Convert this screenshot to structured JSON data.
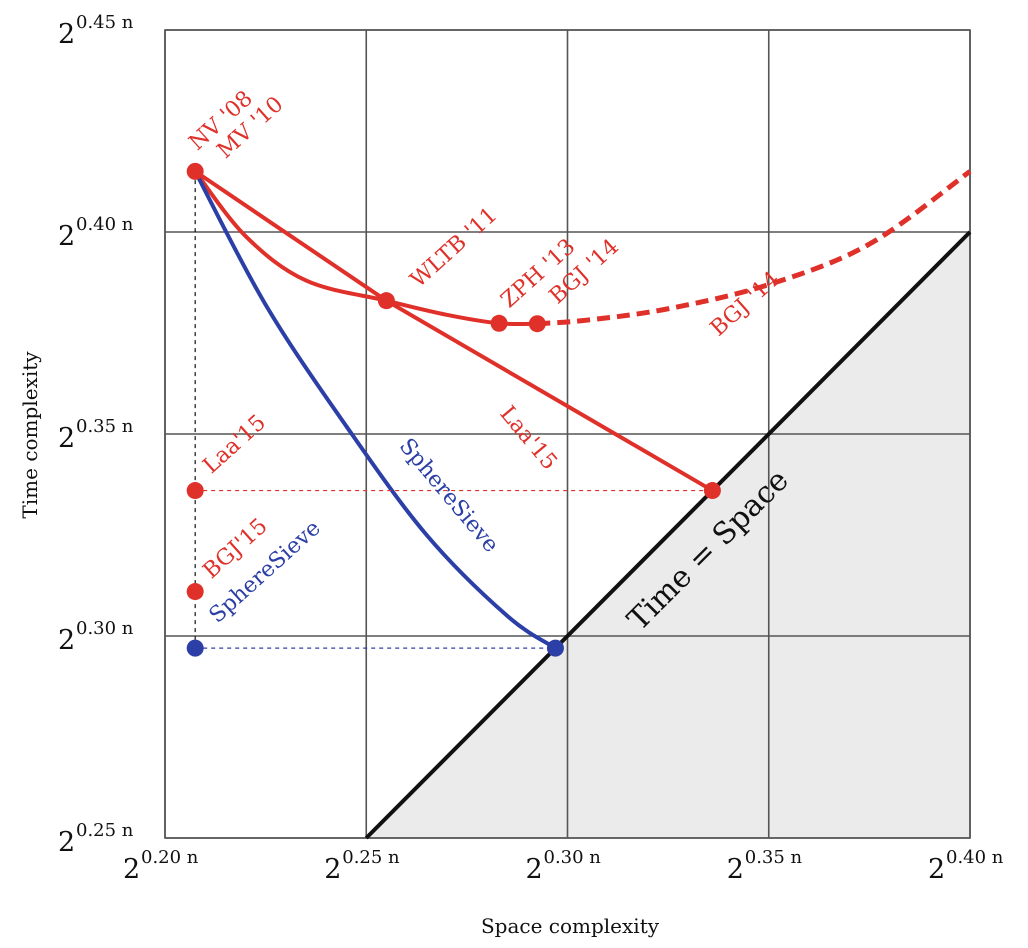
{
  "chart_data": {
    "type": "line",
    "title": "",
    "xlabel": "Space complexity",
    "ylabel": "Time complexity",
    "xlim": [
      0.2,
      0.4
    ],
    "ylim": [
      0.25,
      0.45
    ],
    "x_tick_values": [
      0.2,
      0.25,
      0.3,
      0.35,
      0.4
    ],
    "y_tick_values": [
      0.25,
      0.3,
      0.35,
      0.4,
      0.45
    ],
    "x_tick_labels": [
      {
        "base": "2",
        "exp": "0.20 n"
      },
      {
        "base": "2",
        "exp": "0.25 n"
      },
      {
        "base": "2",
        "exp": "0.30 n"
      },
      {
        "base": "2",
        "exp": "0.35 n"
      },
      {
        "base": "2",
        "exp": "0.40 n"
      }
    ],
    "y_tick_labels": [
      {
        "base": "2",
        "exp": "0.25 n"
      },
      {
        "base": "2",
        "exp": "0.30 n"
      },
      {
        "base": "2",
        "exp": "0.35 n"
      },
      {
        "base": "2",
        "exp": "0.40 n"
      },
      {
        "base": "2",
        "exp": "0.45 n"
      }
    ],
    "grid": true,
    "colors": {
      "red": "#e0302a",
      "blue": "#2b3fa6",
      "black": "#111111",
      "shade": "#ebebeb",
      "grid": "#555555"
    },
    "series": [
      {
        "color": "red",
        "style": "solid",
        "kind": "curve",
        "x": [
          0.2075,
          0.22,
          0.235,
          0.255,
          0.27,
          0.283,
          0.2925
        ],
        "y": [
          0.415,
          0.399,
          0.388,
          0.383,
          0.3795,
          0.3774,
          0.3773
        ]
      },
      {
        "color": "red",
        "style": "dashed",
        "kind": "curve",
        "x": [
          0.2925,
          0.305,
          0.325,
          0.35,
          0.375,
          0.4
        ],
        "y": [
          0.3773,
          0.3782,
          0.381,
          0.387,
          0.397,
          0.415
        ]
      },
      {
        "color": "red",
        "style": "solid",
        "kind": "line",
        "x": [
          0.2075,
          0.255,
          0.336
        ],
        "y": [
          0.415,
          0.383,
          0.336
        ]
      },
      {
        "color": "blue",
        "style": "solid",
        "kind": "curve",
        "x": [
          0.2075,
          0.225,
          0.245,
          0.265,
          0.285,
          0.297
        ],
        "y": [
          0.415,
          0.382,
          0.352,
          0.325,
          0.305,
          0.297
        ]
      },
      {
        "color": "black",
        "style": "solid",
        "kind": "line",
        "x": [
          0.25,
          0.4
        ],
        "y": [
          0.25,
          0.4
        ]
      },
      {
        "color": "black",
        "style": "dotted",
        "kind": "line",
        "x": [
          0.2075,
          0.2075
        ],
        "y": [
          0.297,
          0.415
        ]
      },
      {
        "color": "red",
        "style": "dotted",
        "kind": "line",
        "x": [
          0.2075,
          0.336
        ],
        "y": [
          0.336,
          0.336
        ]
      },
      {
        "color": "blue",
        "style": "dotted",
        "kind": "line",
        "x": [
          0.2075,
          0.297
        ],
        "y": [
          0.297,
          0.297
        ]
      }
    ],
    "points": [
      {
        "x": 0.2075,
        "y": 0.415,
        "color": "red"
      },
      {
        "x": 0.255,
        "y": 0.383,
        "color": "red"
      },
      {
        "x": 0.283,
        "y": 0.3774,
        "color": "red"
      },
      {
        "x": 0.2925,
        "y": 0.3773,
        "color": "red"
      },
      {
        "x": 0.336,
        "y": 0.336,
        "color": "red"
      },
      {
        "x": 0.2075,
        "y": 0.336,
        "color": "red"
      },
      {
        "x": 0.2075,
        "y": 0.311,
        "color": "red"
      },
      {
        "x": 0.297,
        "y": 0.297,
        "color": "blue"
      },
      {
        "x": 0.2075,
        "y": 0.297,
        "color": "blue"
      }
    ],
    "annotations": [
      {
        "text": "NV '08",
        "x": 0.208,
        "y": 0.42,
        "angle": -42,
        "color": "red"
      },
      {
        "text": "MV '10",
        "x": 0.215,
        "y": 0.418,
        "angle": -42,
        "color": "red"
      },
      {
        "text": "WLTB '11",
        "x": 0.263,
        "y": 0.386,
        "angle": -42,
        "color": "red"
      },
      {
        "text": "ZPH '13",
        "x": 0.2855,
        "y": 0.381,
        "angle": -42,
        "color": "red"
      },
      {
        "text": "BGJ '14",
        "x": 0.2975,
        "y": 0.382,
        "angle": -42,
        "color": "red"
      },
      {
        "text": "BGJ '14",
        "x": 0.3375,
        "y": 0.374,
        "angle": -42,
        "color": "red"
      },
      {
        "text": "Laa'15",
        "x": 0.283,
        "y": 0.355,
        "angle": 50,
        "color": "red"
      },
      {
        "text": "SphereSieve",
        "x": 0.258,
        "y": 0.347,
        "angle": 50,
        "color": "blue"
      },
      {
        "text": "Laa'15",
        "x": 0.2115,
        "y": 0.34,
        "angle": -42,
        "color": "red"
      },
      {
        "text": "BGJ'15",
        "x": 0.2115,
        "y": 0.314,
        "angle": -42,
        "color": "red"
      },
      {
        "text": "SphereSieve",
        "x": 0.213,
        "y": 0.303,
        "angle": -42,
        "color": "blue"
      },
      {
        "text": "Time = Space",
        "x": 0.318,
        "y": 0.301,
        "angle": -45,
        "color": "black"
      }
    ]
  }
}
